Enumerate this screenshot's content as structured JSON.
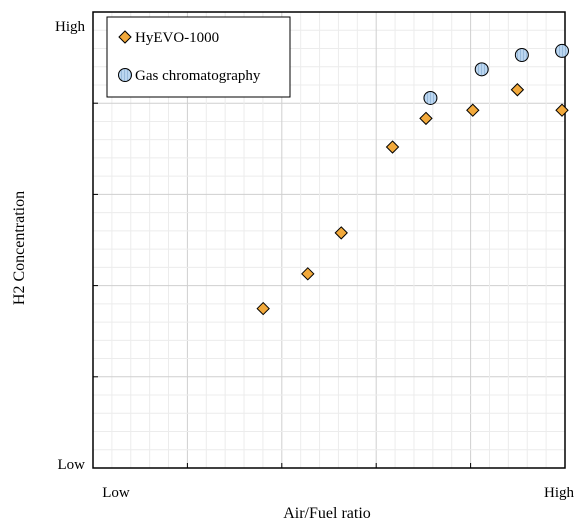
{
  "chart_data": {
    "type": "scatter",
    "title": "",
    "xlabel": "Air/Fuel ratio",
    "ylabel": "H2 Concentration",
    "x_tick_labels": {
      "low": "Low",
      "high": "High"
    },
    "y_tick_labels": {
      "low": "Low",
      "high": "High"
    },
    "xlim": [
      0,
      100
    ],
    "ylim": [
      0,
      100
    ],
    "grid": true,
    "legend_position": "top-left",
    "series": [
      {
        "name": "HyEVO-1000",
        "marker": "diamond",
        "color": "#F2A93B",
        "points": [
          {
            "x": 33,
            "y": 38
          },
          {
            "x": 43,
            "y": 46.5
          },
          {
            "x": 50.5,
            "y": 56.5
          },
          {
            "x": 62,
            "y": 77.5
          },
          {
            "x": 69.5,
            "y": 84.5
          },
          {
            "x": 80,
            "y": 86.5
          },
          {
            "x": 90,
            "y": 91.5
          },
          {
            "x": 100,
            "y": 86.5
          }
        ]
      },
      {
        "name": "Gas chromatography",
        "marker": "circle-striped",
        "color": "#BBD6F0",
        "points": [
          {
            "x": 70.5,
            "y": 89.5
          },
          {
            "x": 82,
            "y": 96.5
          },
          {
            "x": 91,
            "y": 100
          },
          {
            "x": 100,
            "y": 101
          }
        ]
      }
    ]
  }
}
